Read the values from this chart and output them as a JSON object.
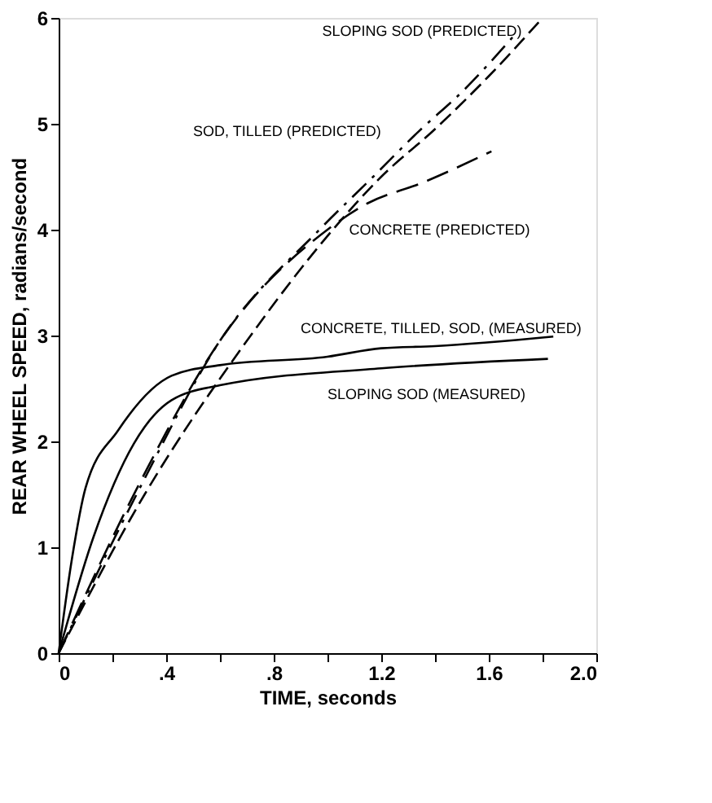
{
  "chart_data": {
    "type": "line",
    "xlabel": "TIME, seconds",
    "ylabel": "REAR WHEEL SPEED, radians/second",
    "xlim": [
      0,
      2.0
    ],
    "ylim": [
      0,
      6
    ],
    "xticks": [
      0,
      {
        "value": 0.2,
        "label": null
      },
      {
        "value": 0.4,
        "label": ".4"
      },
      {
        "value": 0.6,
        "label": null
      },
      {
        "value": 0.8,
        "label": ".8"
      },
      {
        "value": 1.0,
        "label": null
      },
      {
        "value": 1.2,
        "label": "1.2"
      },
      {
        "value": 1.4,
        "label": null
      },
      {
        "value": 1.6,
        "label": "1.6"
      },
      {
        "value": 1.8,
        "label": null
      },
      {
        "value": 2.0,
        "label": "2.0"
      }
    ],
    "yticks": [
      0,
      1,
      2,
      3,
      4,
      5,
      6
    ],
    "grid": false,
    "marker": "none",
    "series": [
      {
        "name": "SLOPING SOD (PREDICTED)",
        "color": "#000000",
        "line_style": "dashed",
        "x": [
          0,
          0.32,
          0.7,
          1.02,
          1.2,
          1.4,
          1.6,
          1.8
        ],
        "values": [
          0,
          1.5,
          2.95,
          4.0,
          4.5,
          4.95,
          5.45,
          6.0
        ]
      },
      {
        "name": "SOD, TILLED (PREDICTED)",
        "color": "#000000",
        "line_style": "dashed",
        "x": [
          0,
          0.3,
          0.6,
          0.97,
          1.17,
          1.34,
          1.5,
          1.7
        ],
        "values": [
          0,
          1.55,
          2.95,
          4.0,
          4.5,
          4.93,
          5.3,
          5.85
        ]
      },
      {
        "name": "CONCRETE (PREDICTED)",
        "color": "#000000",
        "line_style": "dashed",
        "x": [
          0,
          0.3,
          0.6,
          1.0,
          1.15,
          1.35,
          1.61
        ],
        "values": [
          0,
          1.6,
          2.95,
          4.0,
          4.25,
          4.44,
          4.74
        ]
      },
      {
        "name": "CONCRETE, TILLED, SOD, (MEASURED)",
        "color": "#000000",
        "line_style": "solid",
        "x": [
          0,
          0.05,
          0.1,
          0.22,
          0.42,
          0.6,
          1.0,
          1.2,
          1.4,
          1.84
        ],
        "values": [
          0,
          0.9,
          1.56,
          2.1,
          2.62,
          2.72,
          2.8,
          2.88,
          2.9,
          2.99
        ]
      },
      {
        "name": "SLOPING SOD (MEASURED)",
        "color": "#000000",
        "line_style": "solid",
        "x": [
          0,
          0.13,
          0.28,
          0.42,
          0.6,
          1.2,
          1.82
        ],
        "values": [
          0,
          1.1,
          1.98,
          2.39,
          2.53,
          2.69,
          2.78
        ]
      }
    ]
  }
}
